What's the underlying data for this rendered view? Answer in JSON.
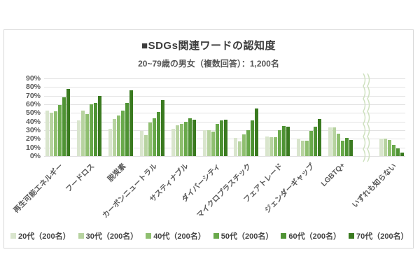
{
  "card": {
    "title": "■SDGs関連ワードの認知度",
    "subtitle": "20~79歳の男女（複数回答）：1,200名"
  },
  "chart_data": {
    "type": "bar",
    "title": "■SDGs関連ワードの認知度",
    "subtitle": "20~79歳の男女（複数回答）：1,200名",
    "ylim": [
      0,
      90
    ],
    "ytick_step": 10,
    "ytick_suffix": "%",
    "grid": true,
    "legend_position": "bottom",
    "axis_break": {
      "after_category_index": 9,
      "icon": "axis-break-squiggle",
      "color": "#cde0bd"
    },
    "categories": [
      "再生可能エネルギー",
      "フードロス",
      "脱炭素",
      "カーボンニュートラル",
      "サスティナブル",
      "ダイバーシティ",
      "マイクロプラスチック",
      "フェアトレード",
      "ジェンダーギャップ",
      "LGBTQ+",
      "いずれも知らない"
    ],
    "series": [
      {
        "name": "20代（200名）",
        "color": "#d9e5cd",
        "values": [
          53,
          41,
          32,
          29,
          32,
          30,
          21,
          23,
          20,
          33,
          20
        ]
      },
      {
        "name": "30代（200名）",
        "color": "#b7d3a0",
        "values": [
          50,
          53,
          43,
          24,
          36,
          30,
          17,
          22,
          18,
          33,
          20
        ]
      },
      {
        "name": "40代（200名）",
        "color": "#8fbf70",
        "values": [
          52,
          49,
          47,
          39,
          37,
          28,
          25,
          22,
          18,
          26,
          19
        ]
      },
      {
        "name": "50代（200名）",
        "color": "#69a94b",
        "values": [
          59,
          60,
          53,
          44,
          40,
          37,
          30,
          30,
          29,
          18,
          13
        ]
      },
      {
        "name": "60代（200名）",
        "color": "#4f9334",
        "values": [
          68,
          62,
          62,
          51,
          44,
          41,
          41,
          35,
          34,
          21,
          9
        ]
      },
      {
        "name": "70代（200名）",
        "color": "#3a7a20",
        "values": [
          78,
          70,
          76,
          65,
          42,
          42,
          55,
          34,
          43,
          19,
          4
        ]
      }
    ],
    "colors": {
      "gridline": "#e2e2e2",
      "axis_text": "#595959",
      "title_text": "#3d3d3d"
    }
  }
}
